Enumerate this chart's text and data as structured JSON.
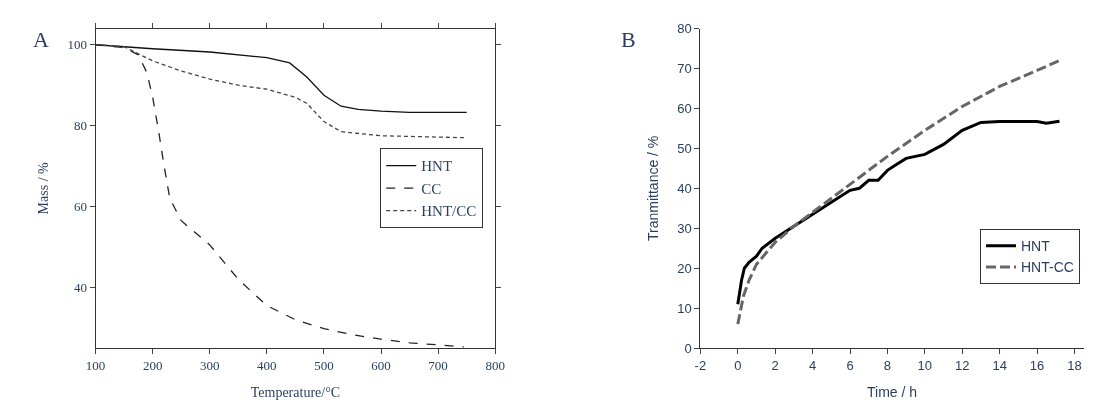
{
  "chart_data": [
    {
      "type": "line",
      "title": "A",
      "xlabel": "Temperature/°C",
      "ylabel": "Mass / %",
      "xlim": [
        100,
        800
      ],
      "xticks": [
        100,
        200,
        300,
        400,
        500,
        600,
        700,
        800
      ],
      "ylim": [
        25,
        104
      ],
      "yticks": [
        40,
        60,
        80,
        100
      ],
      "legend": "right",
      "marker": "none",
      "series": [
        {
          "name": "HNT",
          "color": "#111111",
          "line_style": "solid",
          "x": [
            100,
            200,
            300,
            400,
            440,
            470,
            500,
            530,
            560,
            600,
            650,
            750
          ],
          "values": [
            100,
            99,
            98.2,
            96.8,
            95.5,
            92,
            87.5,
            84.8,
            84,
            83.6,
            83.3,
            83.3
          ]
        },
        {
          "name": "CC",
          "color": "#222222",
          "line_style": "dashed",
          "x": [
            100,
            150,
            175,
            190,
            200,
            210,
            220,
            230,
            250,
            300,
            350,
            400,
            450,
            500,
            550,
            600,
            650,
            700,
            745
          ],
          "values": [
            100,
            99.3,
            97.5,
            93,
            87,
            79,
            70,
            62,
            56.5,
            50.5,
            42,
            35.5,
            32,
            29.8,
            28.3,
            27.2,
            26.3,
            25.8,
            25.3
          ]
        },
        {
          "name": "HNT/CC",
          "color": "#444444",
          "line_style": "dotted",
          "x": [
            100,
            150,
            200,
            250,
            300,
            350,
            400,
            450,
            470,
            500,
            530,
            600,
            750
          ],
          "values": [
            100,
            99.5,
            96,
            93.5,
            91.5,
            90,
            89,
            87,
            85.5,
            81,
            78.5,
            77.5,
            77
          ]
        }
      ]
    },
    {
      "type": "line",
      "title": "B",
      "xlabel": "Time / h",
      "ylabel": "Tranmittance / %",
      "xlim": [
        -2,
        18.5
      ],
      "xticks": [
        -2,
        0,
        2,
        4,
        6,
        8,
        10,
        12,
        14,
        16,
        18
      ],
      "ylim": [
        0,
        80
      ],
      "yticks": [
        0,
        10,
        20,
        30,
        40,
        50,
        60,
        70,
        80
      ],
      "legend": "bottom right",
      "marker": "none",
      "series": [
        {
          "name": "HNT",
          "color": "#000000",
          "line_style": "solid",
          "x": [
            0,
            0.1,
            0.2,
            0.35,
            0.6,
            1,
            1.3,
            2,
            3,
            4,
            5,
            6,
            6.5,
            7,
            7.5,
            8,
            8.5,
            9,
            10,
            11,
            12,
            13,
            14,
            16,
            16.5,
            17.2
          ],
          "values": [
            11,
            14,
            17,
            20,
            21.5,
            23,
            25,
            27.5,
            30.5,
            33.5,
            36.5,
            39.5,
            40,
            42,
            42,
            44.5,
            46,
            47.5,
            48.5,
            51,
            54.5,
            56.5,
            56.7,
            56.7,
            56.3,
            56.8
          ]
        },
        {
          "name": "HNT-CC",
          "color": "#666666",
          "line_style": "dashed",
          "x": [
            0,
            0.3,
            0.6,
            1,
            2,
            3,
            4,
            5,
            6,
            7,
            8,
            10,
            12,
            14,
            16,
            17.2
          ],
          "values": [
            6,
            13,
            17,
            21,
            26.5,
            30.5,
            34,
            37.5,
            41,
            44.5,
            48,
            54.5,
            60.5,
            65.5,
            69.5,
            72
          ]
        }
      ]
    }
  ]
}
